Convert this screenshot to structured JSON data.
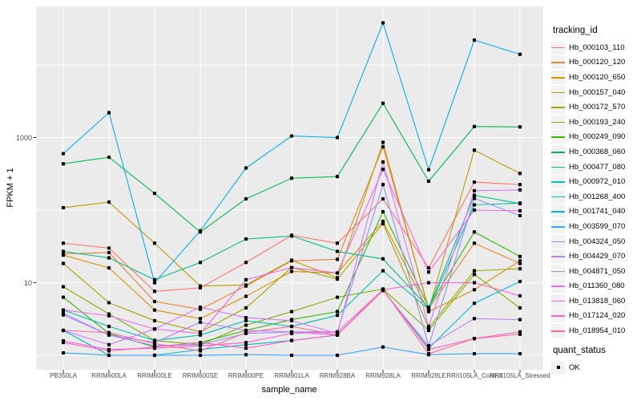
{
  "figure": {
    "background": "#FFFFFF"
  },
  "axes": {
    "x_title": "sample_name",
    "y_title": "FPKM + 1"
  },
  "legend": {
    "tracking_title": "tracking_id",
    "quant_title": "quant_status",
    "quant_ok_label": "OK",
    "key_background": "#F2F2F2",
    "point_color": "#000000"
  },
  "chart_data": {
    "type": "line",
    "title": "",
    "xlabel": "sample_name",
    "ylabel": "FPKM + 1",
    "y_scale": "log10",
    "ylim": [
      0.65,
      64000
    ],
    "y_tick_labels": [
      "10",
      "1000"
    ],
    "y_tick_values": [
      10,
      1000
    ],
    "y_gridline_values": [
      1,
      10,
      100,
      1000,
      10000
    ],
    "grid": "on",
    "legend_position": "right",
    "panel_background": "#EBEBEB",
    "gridline_color": "#FFFFFF",
    "tick_color": "#333333",
    "point_color": "#000000",
    "x_categories": [
      "PB350LA",
      "RRIM600LA",
      "RRIM600LE",
      "RRIM600SE",
      "RRIM600PE",
      "RRIM901LA",
      "RRIM928BA",
      "RRIM928LA",
      "RRIM928LE",
      "RRII105LA_Control",
      "RRII105LA_Stressed"
    ],
    "series": [
      {
        "name": "Hb_000103_110",
        "color": "#F8766D",
        "values": [
          35,
          30,
          7.6,
          8.5,
          19,
          45,
          35,
          143,
          16,
          243,
          225
        ]
      },
      {
        "name": "Hb_000120_120",
        "color": "#EA8331",
        "values": [
          25,
          26,
          5.5,
          4.3,
          9,
          20,
          21,
          745,
          4.4,
          35,
          18.4
        ]
      },
      {
        "name": "Hb_000120_650",
        "color": "#D89000",
        "values": [
          24,
          16,
          4.2,
          3.2,
          6.5,
          14.3,
          13.6,
          70,
          4.0,
          8,
          20
        ]
      },
      {
        "name": "Hb_000157_040",
        "color": "#C09B00",
        "values": [
          108,
          129,
          35,
          9,
          9.3,
          20.4,
          11.7,
          860,
          4.2,
          670,
          320
        ]
      },
      {
        "name": "Hb_000172_570",
        "color": "#A3A500",
        "values": [
          18.4,
          5.3,
          3.0,
          2.1,
          4.5,
          16.2,
          11.2,
          65,
          2.4,
          14.6,
          15.6
        ]
      },
      {
        "name": "Hb_000193_240",
        "color": "#7CAE00",
        "values": [
          8.8,
          3.7,
          1.6,
          1.4,
          2.6,
          4.0,
          6.3,
          8.2,
          2.2,
          13,
          4.5
        ]
      },
      {
        "name": "Hb_000249_090",
        "color": "#39B600",
        "values": [
          6.3,
          2.0,
          1.3,
          1.5,
          2.2,
          3.1,
          4.0,
          95,
          4.6,
          50,
          23
        ]
      },
      {
        "name": "Hb_000368_060",
        "color": "#00BB4E",
        "values": [
          435,
          535,
          170,
          50,
          143,
          275,
          290,
          2970,
          250,
          1420,
          1400
        ]
      },
      {
        "name": "Hb_000477_080",
        "color": "#00C087",
        "values": [
          27,
          22,
          11,
          19,
          40,
          44,
          27,
          21.3,
          4.5,
          160,
          123
        ]
      },
      {
        "name": "Hb_000972_010",
        "color": "#00C0AF",
        "values": [
          4.2,
          2.5,
          1.6,
          1.9,
          3.0,
          2.5,
          3.55,
          14.6,
          4.3,
          118,
          125
        ]
      },
      {
        "name": "Hb_001268_400",
        "color": "#00BCD8",
        "values": [
          2.2,
          1.0,
          1.0,
          1.2,
          1.4,
          1.6,
          1.9,
          8.0,
          1.25,
          5.2,
          10.4
        ]
      },
      {
        "name": "Hb_001741_040",
        "color": "#00B0F6",
        "values": [
          600,
          2200,
          10,
          52,
          380,
          1050,
          1000,
          38000,
          360,
          22000,
          14000
        ]
      },
      {
        "name": "Hb_003599_070",
        "color": "#35A2FF",
        "values": [
          1.08,
          1.0,
          1.0,
          1.0,
          1.02,
          1.0,
          1.0,
          1.3,
          1.02,
          1.05,
          1.05
        ]
      },
      {
        "name": "Hb_004324_050",
        "color": "#9590FF",
        "values": [
          3.8,
          1.9,
          1.35,
          1.4,
          2.0,
          2.1,
          2.1,
          225,
          1.35,
          145,
          84
        ]
      },
      {
        "name": "Hb_004429_070",
        "color": "#B983FF",
        "values": [
          3.6,
          1.9,
          1.5,
          2.85,
          2.2,
          2.1,
          1.9,
          7.8,
          1.35,
          3.2,
          3.1
        ]
      },
      {
        "name": "Hb_004871_050",
        "color": "#D575FE",
        "values": [
          2.2,
          1.4,
          2.3,
          4.6,
          3.3,
          3.0,
          2.0,
          460,
          2.5,
          185,
          190
        ]
      },
      {
        "name": "Hb_011360_080",
        "color": "#EF67EB",
        "values": [
          4.2,
          3.5,
          2.3,
          2.0,
          11,
          16.2,
          13.6,
          365,
          14,
          100,
          98
        ]
      },
      {
        "name": "Hb_013818_060",
        "color": "#FD61D3",
        "values": [
          1.58,
          1.2,
          1.25,
          1.35,
          1.5,
          2.0,
          2.1,
          8.0,
          10,
          10,
          6.6
        ]
      },
      {
        "name": "Hb_017124_020",
        "color": "#FF62BC",
        "values": [
          1.5,
          1.15,
          1.3,
          1.5,
          1.25,
          1.6,
          1.9,
          7.9,
          1.2,
          1.7,
          2.1
        ]
      },
      {
        "name": "Hb_018954_010",
        "color": "#FF6A98",
        "values": [
          2.2,
          2.05,
          1.45,
          1.15,
          2.05,
          2.5,
          1.9,
          8.1,
          1.05,
          1.7,
          1.95
        ]
      }
    ]
  }
}
